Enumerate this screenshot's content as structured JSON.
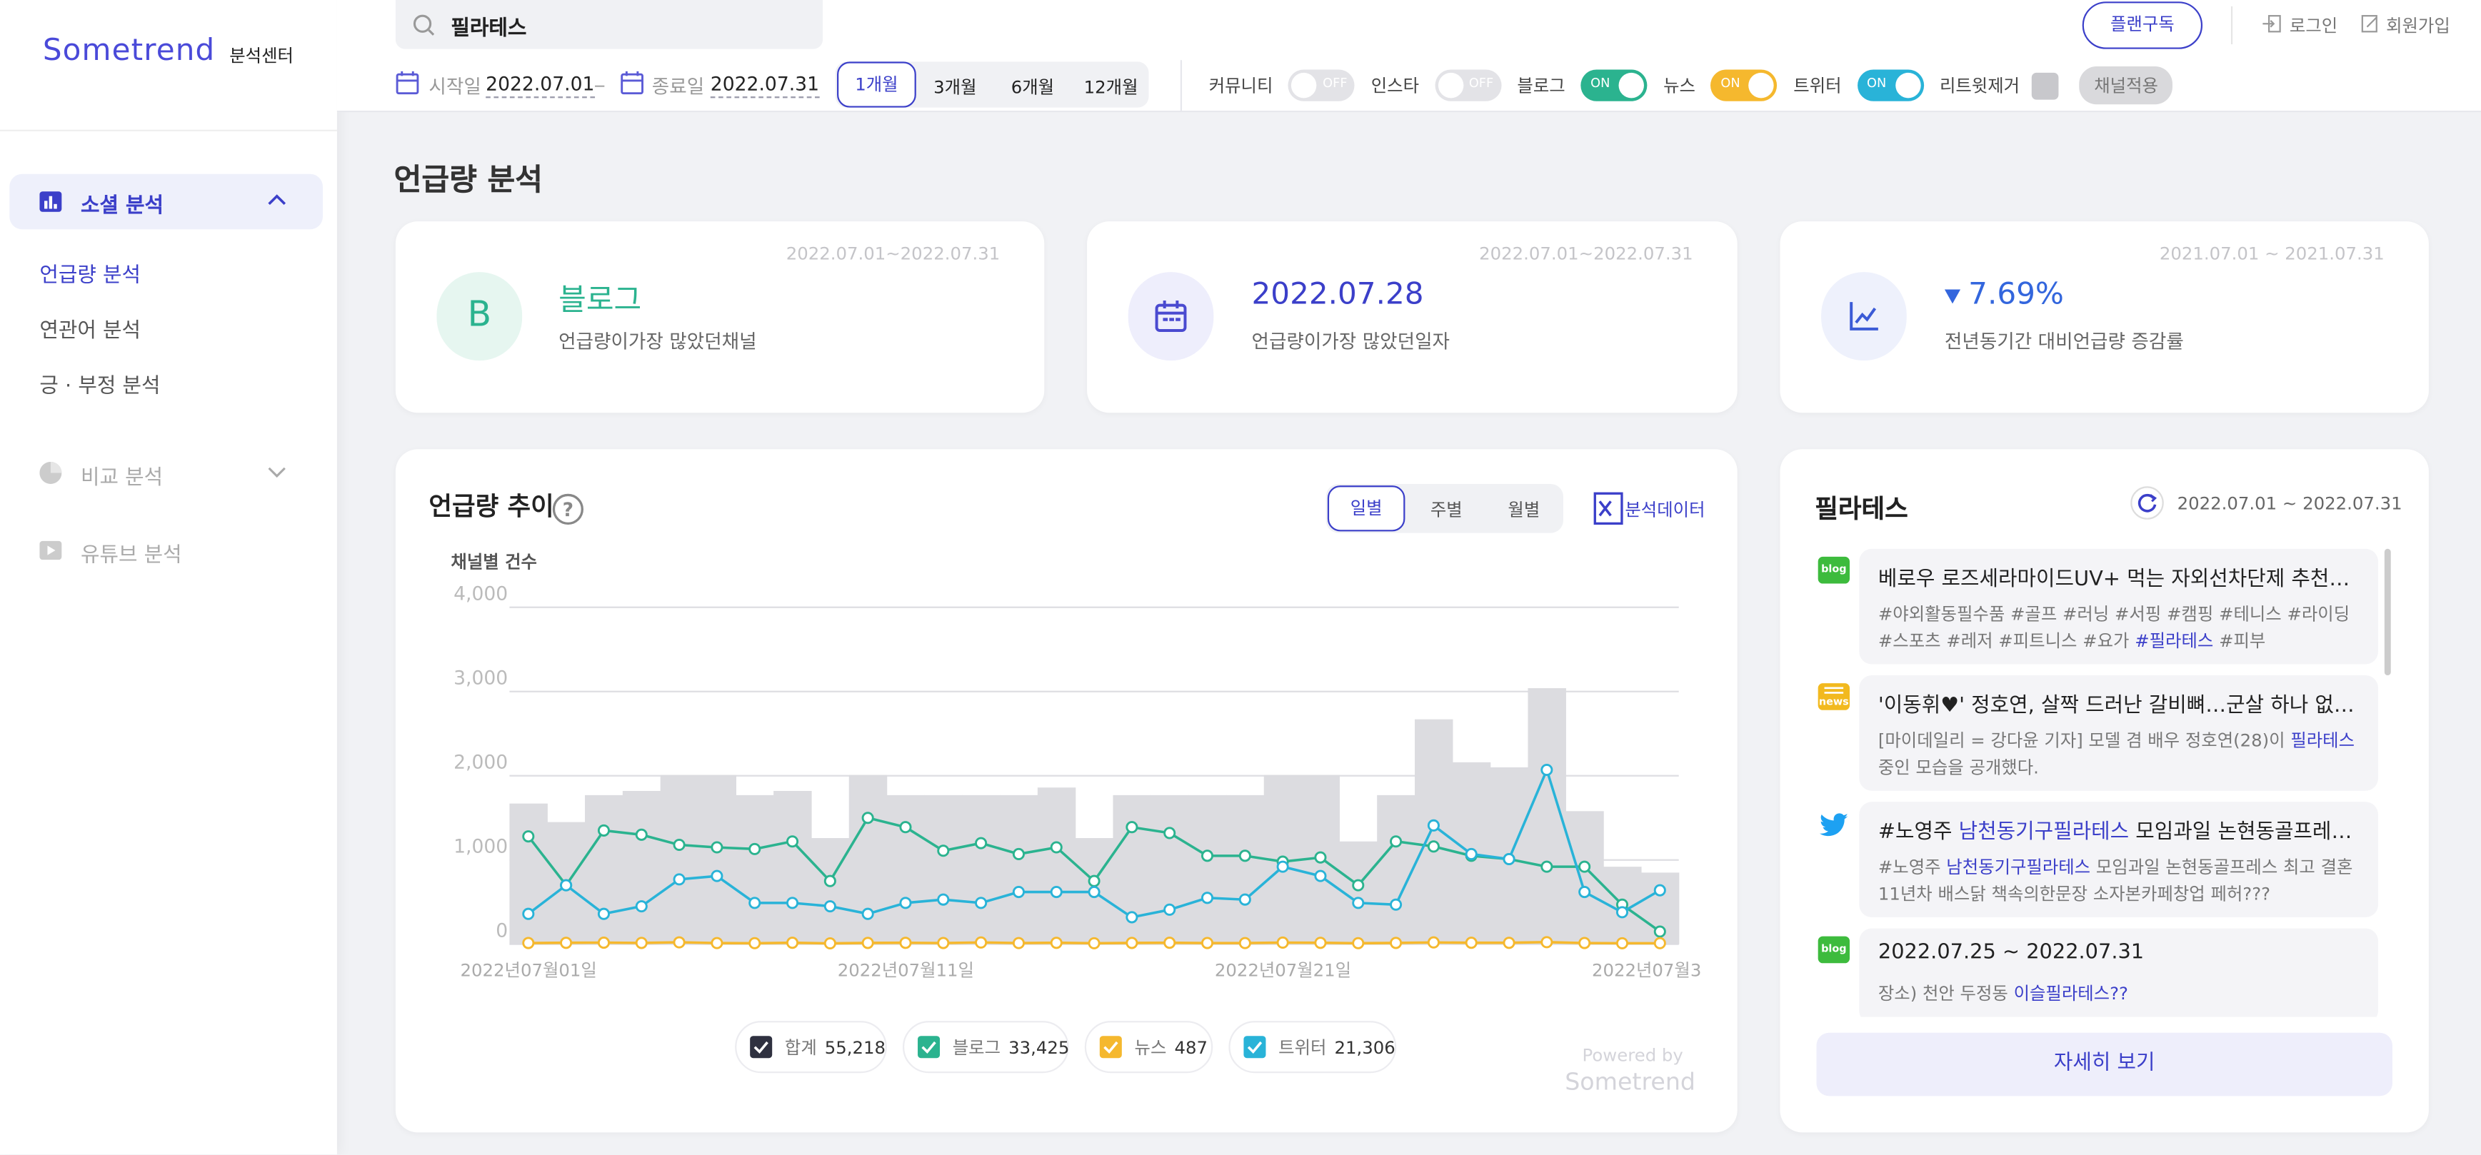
{
  "sidebar": {
    "logo": "Sometrend",
    "logo_sub": "분석센터",
    "menu": [
      {
        "label": "소셜 분석",
        "items": [
          "언급량 분석",
          "연관어 분석",
          "긍 · 부정 분석"
        ]
      },
      {
        "label": "비교 분석"
      },
      {
        "label": "유튜브 분석"
      }
    ]
  },
  "topbar": {
    "search": "필라테스",
    "subscribe": "플랜구독",
    "login": "로그인",
    "signup": "회원가입"
  },
  "filters": {
    "start_label": "시작일",
    "start": "2022.07.01",
    "end_label": "종료일",
    "end": "2022.07.31",
    "periods": [
      "1개월",
      "3개월",
      "6개월",
      "12개월"
    ],
    "channels": [
      {
        "name": "커뮤니티",
        "state": "OFF"
      },
      {
        "name": "인스타",
        "state": "OFF"
      },
      {
        "name": "블로그",
        "state": "ON",
        "color": "#2bb38f"
      },
      {
        "name": "뉴스",
        "state": "ON",
        "color": "#f5b82e"
      },
      {
        "name": "트위터",
        "state": "ON",
        "color": "#29b3d8"
      }
    ],
    "retweet": "리트윗제거",
    "apply": "채널적용"
  },
  "page_title": "언급량 분석",
  "cards": [
    {
      "range": "2022.07.01~2022.07.31",
      "icon": "B",
      "value": "블로그",
      "desc": "언급량이가장 많았던채널"
    },
    {
      "range": "2022.07.01~2022.07.31",
      "value": "2022.07.28",
      "desc": "언급량이가장 많았던일자"
    },
    {
      "range": "2021.07.01 ~ 2021.07.31",
      "value": "7.69%",
      "desc": "전년동기간 대비언급량 증감률"
    }
  ],
  "trend_panel": {
    "tabs": [
      "일별",
      "주별",
      "월별"
    ],
    "export": "분석데이터",
    "powered": "Powered by",
    "brand": "Sometrend"
  },
  "chart_data": {
    "type": "line",
    "title": "언급량 추이",
    "ylabel": "채널별 건수",
    "categories": [
      "2022년07월01일",
      null,
      null,
      null,
      null,
      null,
      null,
      null,
      null,
      null,
      "2022년07월11일",
      null,
      null,
      null,
      null,
      null,
      null,
      null,
      null,
      null,
      "2022년07월21일",
      null,
      null,
      null,
      null,
      null,
      null,
      null,
      null,
      null,
      "2022년07월3"
    ],
    "ylim": [
      0,
      4000
    ],
    "yticks": [
      0,
      {
        "value": 1000,
        "label": "1,000"
      },
      {
        "value": 2000,
        "label": "2,000"
      },
      {
        "value": 3000,
        "label": "3,000"
      },
      {
        "value": 4000,
        "label": "4,000"
      }
    ],
    "grid": true,
    "series": [
      {
        "name": "합계",
        "total": "55,218",
        "color": "#dcdce0",
        "legend_color": "#2f3140",
        "style": "area",
        "values": [
          1670,
          1450,
          1770,
          1820,
          2010,
          2010,
          1770,
          1820,
          1260,
          2010,
          1770,
          1770,
          1770,
          1770,
          1860,
          1260,
          1770,
          1770,
          1770,
          1770,
          2010,
          2010,
          1220,
          1770,
          2670,
          2160,
          2100,
          3040,
          1580,
          920,
          850
        ]
      },
      {
        "name": "블로그",
        "total": "33,425",
        "color": "#2bb38f",
        "style": "line",
        "values": [
          1280,
          700,
          1350,
          1300,
          1180,
          1150,
          1130,
          1220,
          750,
          1500,
          1390,
          1110,
          1200,
          1070,
          1150,
          750,
          1390,
          1320,
          1050,
          1050,
          980,
          1030,
          700,
          1220,
          1160,
          1050,
          1010,
          920,
          920,
          470,
          150
        ]
      },
      {
        "name": "뉴스",
        "total": "487",
        "color": "#f5b82e",
        "style": "line",
        "values": [
          14,
          16,
          18,
          15,
          22,
          13,
          12,
          17,
          10,
          15,
          16,
          14,
          20,
          13,
          16,
          11,
          15,
          17,
          14,
          13,
          19,
          16,
          12,
          15,
          21,
          17,
          16,
          24,
          14,
          11,
          12
        ]
      },
      {
        "name": "트위터",
        "total": "21,306",
        "color": "#29b3d8",
        "style": "line",
        "values": [
          360,
          700,
          360,
          450,
          770,
          810,
          490,
          490,
          450,
          360,
          490,
          530,
          490,
          620,
          620,
          620,
          320,
          410,
          550,
          530,
          920,
          810,
          490,
          470,
          1410,
          1070,
          1010,
          2070,
          620,
          380,
          640
        ]
      }
    ]
  },
  "news_panel": {
    "title": "필라테스",
    "range": "2022.07.01 ~ 2022.07.31",
    "more": "자세히 보기",
    "items": [
      {
        "source": "blog",
        "title": "베로우 로즈세라마이드UV+ 먹는 자외선차단제 추천해요!",
        "body_before": "#야외활동필수품 #골프 #러닝 #서핑 #캠핑 #테니스 #라이딩 #스포츠 #레저 #피트니스 #요가 ",
        "keyword": "#필라테스",
        "body_after": " #피부"
      },
      {
        "source": "news",
        "title": "'이동휘♥' 정호연, 살짝 드러난 갈비뼈…군살 하나 없는 몸매",
        "body_before": "[마이데일리 = 강다윤 기자] 모델 겸 배우 정호연(28)이 ",
        "keyword": "필라테스",
        "body_after": " 중인 모습을 공개했다."
      },
      {
        "source": "twitter",
        "title_before": "#노영주 ",
        "title_keyword": "남천동기구필라테스",
        "title_after": " 모임과일 논현동골프레스 최…",
        "body_before": "#노영주 ",
        "keyword": "남천동기구필라테스",
        "body_after": " 모임과일 논현동골프레스 최고 결혼11년차 배스닭 책속의한문장 소자본카페창업 페허???"
      },
      {
        "source": "blog",
        "title": "2022.07.25 ~ 2022.07.31",
        "body_before": "장소) 천안 두정동 ",
        "keyword": "이슬필라테스??"
      }
    ]
  }
}
